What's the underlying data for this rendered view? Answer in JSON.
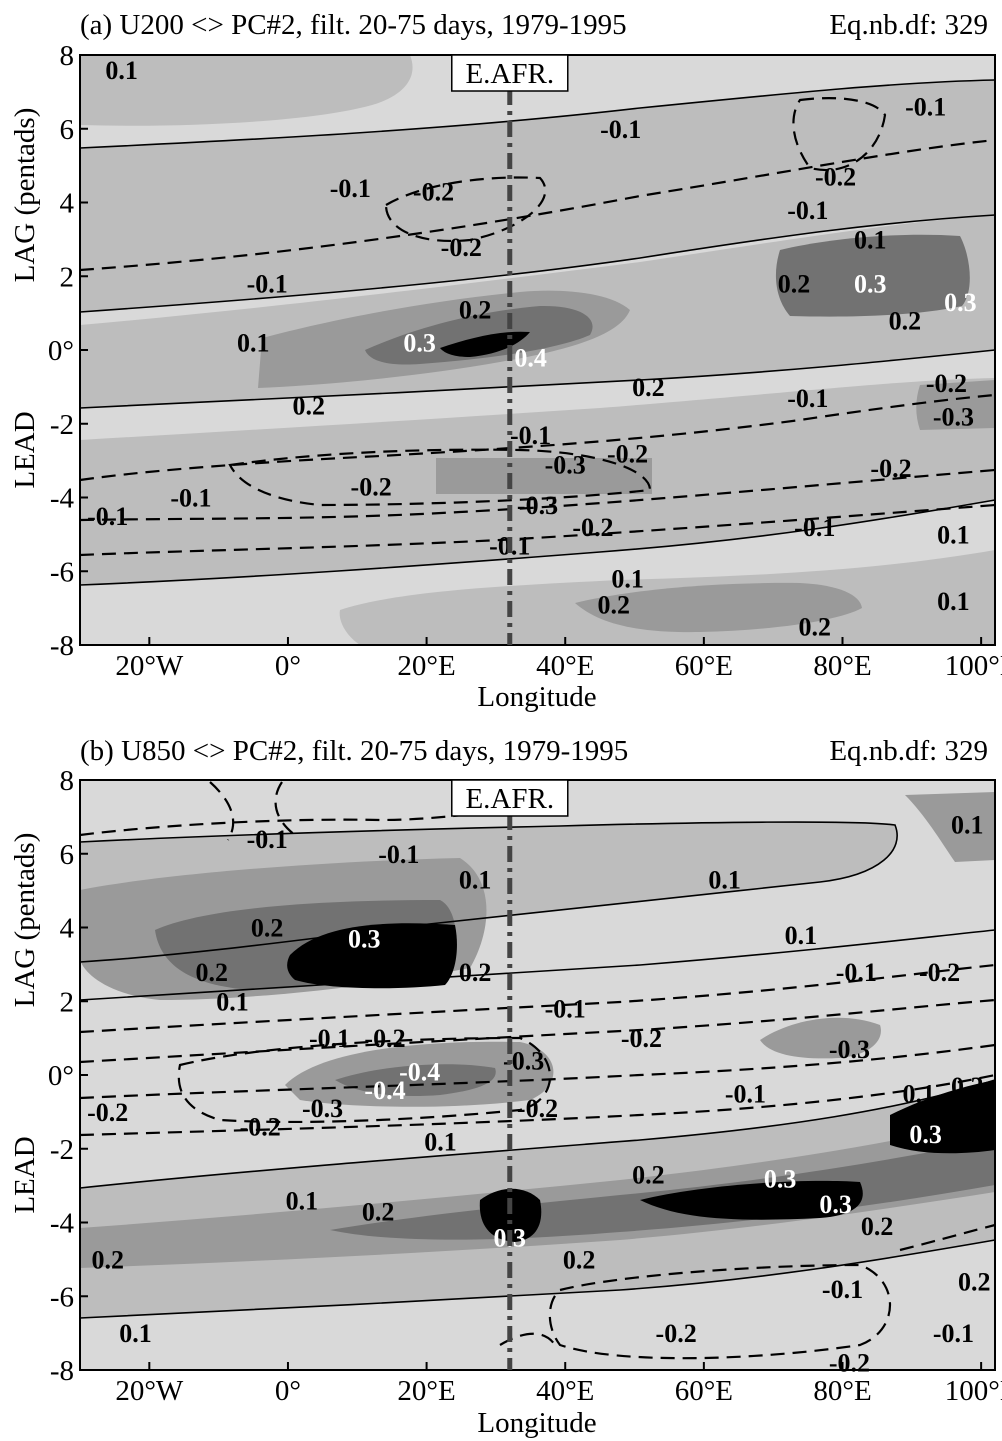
{
  "colors": {
    "background": "#ffffff",
    "shade_levels": [
      "#d9d9d9",
      "#bdbdbd",
      "#9a9a9a",
      "#727272",
      "#000000"
    ],
    "contour_line": "#000000",
    "marker_line": "#444444"
  },
  "chart_data": [
    {
      "type": "heatmap",
      "title": "(a) U200 <> PC#2, filt. 20-75 days, 1979-1995",
      "df_label": "Eq.nb.df: 329",
      "xlabel": "Longitude",
      "ylabel_top": "LAG  (pentads)",
      "ylabel_bottom": "LEAD",
      "xlim": [
        -30,
        102
      ],
      "ylim": [
        -8,
        8
      ],
      "x_ticks": [
        -20,
        0,
        20,
        40,
        60,
        80,
        100
      ],
      "x_tick_labels": [
        "20°W",
        "0°",
        "20°E",
        "40°E",
        "60°E",
        "80°E",
        "100°E"
      ],
      "y_ticks": [
        8,
        6,
        4,
        2,
        0,
        -2,
        -4,
        -6,
        -8
      ],
      "y_tick_labels": [
        "8",
        "6",
        "4",
        "2",
        "0°",
        "-2",
        "-4",
        "-6",
        "-8"
      ],
      "marker": {
        "label": "E.AFR.",
        "lon": 32
      },
      "contour_labels": [
        {
          "text": "0.1",
          "lon": -24,
          "lag": 7.6,
          "color": "black"
        },
        {
          "text": "-0.1",
          "lon": 48,
          "lag": 6.0,
          "color": "black"
        },
        {
          "text": "-0.1",
          "lon": 92,
          "lag": 6.6,
          "color": "black"
        },
        {
          "text": "-0.1",
          "lon": 9,
          "lag": 4.4,
          "color": "black"
        },
        {
          "text": "-0.2",
          "lon": 21,
          "lag": 4.3,
          "color": "black"
        },
        {
          "text": "-0.2",
          "lon": 79,
          "lag": 4.7,
          "color": "black"
        },
        {
          "text": "-0.1",
          "lon": 75,
          "lag": 3.8,
          "color": "black"
        },
        {
          "text": "-0.2",
          "lon": 25,
          "lag": 2.8,
          "color": "black"
        },
        {
          "text": "-0.1",
          "lon": -3,
          "lag": 1.8,
          "color": "black"
        },
        {
          "text": "0.1",
          "lon": 84,
          "lag": 3.0,
          "color": "black"
        },
        {
          "text": "0.2",
          "lon": 73,
          "lag": 1.8,
          "color": "black"
        },
        {
          "text": "0.3",
          "lon": 84,
          "lag": 1.8,
          "color": "white"
        },
        {
          "text": "0.3",
          "lon": 97,
          "lag": 1.3,
          "color": "white"
        },
        {
          "text": "0.2",
          "lon": 27,
          "lag": 1.1,
          "color": "black"
        },
        {
          "text": "0.2",
          "lon": 89,
          "lag": 0.8,
          "color": "black"
        },
        {
          "text": "0.1",
          "lon": -5,
          "lag": 0.2,
          "color": "black"
        },
        {
          "text": "0.3",
          "lon": 19,
          "lag": 0.2,
          "color": "white"
        },
        {
          "text": "0.4",
          "lon": 35,
          "lag": -0.2,
          "color": "white"
        },
        {
          "text": "0.2",
          "lon": 52,
          "lag": -1.0,
          "color": "black"
        },
        {
          "text": "0.2",
          "lon": 3,
          "lag": -1.5,
          "color": "black"
        },
        {
          "text": "-0.1",
          "lon": 75,
          "lag": -1.3,
          "color": "black"
        },
        {
          "text": "-0.2",
          "lon": 95,
          "lag": -0.9,
          "color": "black"
        },
        {
          "text": "-0.3",
          "lon": 96,
          "lag": -1.8,
          "color": "black"
        },
        {
          "text": "-0.1",
          "lon": 35,
          "lag": -2.3,
          "color": "black"
        },
        {
          "text": "-0.2",
          "lon": 49,
          "lag": -2.8,
          "color": "black"
        },
        {
          "text": "-0.3",
          "lon": 40,
          "lag": -3.1,
          "color": "black"
        },
        {
          "text": "-0.2",
          "lon": 12,
          "lag": -3.7,
          "color": "black"
        },
        {
          "text": "-0.1",
          "lon": -14,
          "lag": -4.0,
          "color": "black"
        },
        {
          "text": "-0.1",
          "lon": -26,
          "lag": -4.5,
          "color": "black"
        },
        {
          "text": "-0.3",
          "lon": 36,
          "lag": -4.2,
          "color": "black"
        },
        {
          "text": "-0.2",
          "lon": 87,
          "lag": -3.2,
          "color": "black"
        },
        {
          "text": "-0.2",
          "lon": 44,
          "lag": -4.8,
          "color": "black"
        },
        {
          "text": "-0.1",
          "lon": 32,
          "lag": -5.3,
          "color": "black"
        },
        {
          "text": "-0.1",
          "lon": 76,
          "lag": -4.8,
          "color": "black"
        },
        {
          "text": "0.1",
          "lon": 96,
          "lag": -5.0,
          "color": "black"
        },
        {
          "text": "0.1",
          "lon": 49,
          "lag": -6.2,
          "color": "black"
        },
        {
          "text": "0.2",
          "lon": 47,
          "lag": -6.9,
          "color": "black"
        },
        {
          "text": "0.1",
          "lon": 96,
          "lag": -6.8,
          "color": "black"
        },
        {
          "text": "0.2",
          "lon": 76,
          "lag": -7.5,
          "color": "black"
        }
      ]
    },
    {
      "type": "heatmap",
      "title": "(b) U850 <> PC#2, filt. 20-75 days, 1979-1995",
      "df_label": "Eq.nb.df: 329",
      "xlabel": "Longitude",
      "ylabel_top": "LAG  (pentads)",
      "ylabel_bottom": "LEAD",
      "xlim": [
        -30,
        102
      ],
      "ylim": [
        -8,
        8
      ],
      "x_ticks": [
        -20,
        0,
        20,
        40,
        60,
        80,
        100
      ],
      "x_tick_labels": [
        "20°W",
        "0°",
        "20°E",
        "40°E",
        "60°E",
        "80°E",
        "100°E"
      ],
      "y_ticks": [
        8,
        6,
        4,
        2,
        0,
        -2,
        -4,
        -6,
        -8
      ],
      "y_tick_labels": [
        "8",
        "6",
        "4",
        "2",
        "0°",
        "-2",
        "-4",
        "-6",
        "-8"
      ],
      "marker": {
        "label": "E.AFR.",
        "lon": 32
      },
      "contour_labels": [
        {
          "text": "-0.1",
          "lon": -3,
          "lag": 6.4,
          "color": "black"
        },
        {
          "text": "-0.1",
          "lon": 16,
          "lag": 6.0,
          "color": "black"
        },
        {
          "text": "0.1",
          "lon": 98,
          "lag": 6.8,
          "color": "black"
        },
        {
          "text": "0.1",
          "lon": 27,
          "lag": 5.3,
          "color": "black"
        },
        {
          "text": "0.1",
          "lon": 63,
          "lag": 5.3,
          "color": "black"
        },
        {
          "text": "0.2",
          "lon": -3,
          "lag": 4.0,
          "color": "black"
        },
        {
          "text": "0.3",
          "lon": 11,
          "lag": 3.7,
          "color": "white"
        },
        {
          "text": "0.1",
          "lon": 74,
          "lag": 3.8,
          "color": "black"
        },
        {
          "text": "0.2",
          "lon": -11,
          "lag": 2.8,
          "color": "black"
        },
        {
          "text": "0.2",
          "lon": 27,
          "lag": 2.8,
          "color": "black"
        },
        {
          "text": "-0.1",
          "lon": 82,
          "lag": 2.8,
          "color": "black"
        },
        {
          "text": "-0.2",
          "lon": 94,
          "lag": 2.8,
          "color": "black"
        },
        {
          "text": "0.1",
          "lon": -8,
          "lag": 2.0,
          "color": "black"
        },
        {
          "text": "-0.1",
          "lon": 40,
          "lag": 1.8,
          "color": "black"
        },
        {
          "text": "-0.1",
          "lon": 6,
          "lag": 1.0,
          "color": "black"
        },
        {
          "text": "-0.2",
          "lon": 14,
          "lag": 1.0,
          "color": "black"
        },
        {
          "text": "-0.2",
          "lon": 51,
          "lag": 1.0,
          "color": "black"
        },
        {
          "text": "-0.3",
          "lon": 81,
          "lag": 0.7,
          "color": "black"
        },
        {
          "text": "-0.3",
          "lon": 34,
          "lag": 0.4,
          "color": "black"
        },
        {
          "text": "-0.4",
          "lon": 19,
          "lag": 0.1,
          "color": "white"
        },
        {
          "text": "-0.4",
          "lon": 14,
          "lag": -0.4,
          "color": "white"
        },
        {
          "text": "-0.3",
          "lon": 5,
          "lag": -0.9,
          "color": "black"
        },
        {
          "text": "-0.2",
          "lon": 36,
          "lag": -0.9,
          "color": "black"
        },
        {
          "text": "-0.1",
          "lon": 66,
          "lag": -0.5,
          "color": "black"
        },
        {
          "text": "0.1",
          "lon": 91,
          "lag": -0.5,
          "color": "black"
        },
        {
          "text": "0.2",
          "lon": 98,
          "lag": -0.3,
          "color": "black"
        },
        {
          "text": "-0.2",
          "lon": -26,
          "lag": -1.0,
          "color": "black"
        },
        {
          "text": "-0.2",
          "lon": -4,
          "lag": -1.4,
          "color": "black"
        },
        {
          "text": "0.1",
          "lon": 22,
          "lag": -1.8,
          "color": "black"
        },
        {
          "text": "0.3",
          "lon": 92,
          "lag": -1.6,
          "color": "white"
        },
        {
          "text": "0.2",
          "lon": 52,
          "lag": -2.7,
          "color": "black"
        },
        {
          "text": "0.3",
          "lon": 71,
          "lag": -2.8,
          "color": "white"
        },
        {
          "text": "0.3",
          "lon": 79,
          "lag": -3.5,
          "color": "white"
        },
        {
          "text": "0.1",
          "lon": 2,
          "lag": -3.4,
          "color": "black"
        },
        {
          "text": "0.2",
          "lon": 13,
          "lag": -3.7,
          "color": "black"
        },
        {
          "text": "0.2",
          "lon": 85,
          "lag": -4.1,
          "color": "black"
        },
        {
          "text": "0.3",
          "lon": 32,
          "lag": -4.4,
          "color": "white"
        },
        {
          "text": "0.2",
          "lon": 42,
          "lag": -5.0,
          "color": "black"
        },
        {
          "text": "0.2",
          "lon": -26,
          "lag": -5.0,
          "color": "black"
        },
        {
          "text": "0.2",
          "lon": 99,
          "lag": -5.6,
          "color": "black"
        },
        {
          "text": "-0.1",
          "lon": 80,
          "lag": -5.8,
          "color": "black"
        },
        {
          "text": "0.1",
          "lon": -22,
          "lag": -7.0,
          "color": "black"
        },
        {
          "text": "-0.2",
          "lon": 56,
          "lag": -7.0,
          "color": "black"
        },
        {
          "text": "-0.1",
          "lon": 96,
          "lag": -7.0,
          "color": "black"
        },
        {
          "text": "-0.2",
          "lon": 81,
          "lag": -7.8,
          "color": "black"
        }
      ]
    }
  ]
}
